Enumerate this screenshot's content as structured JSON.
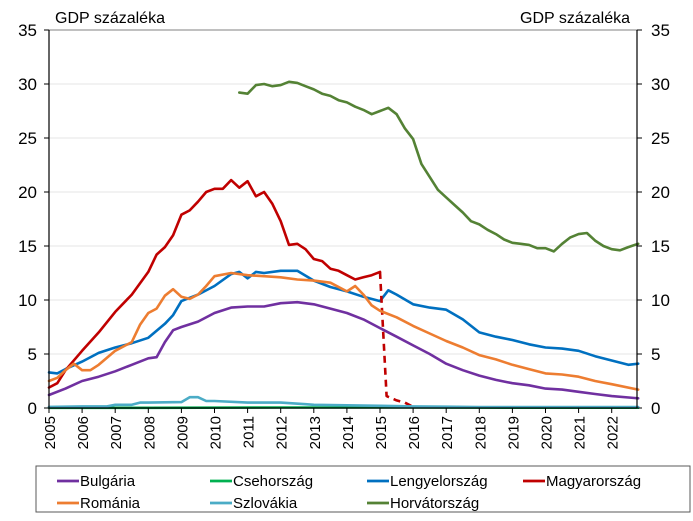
{
  "chart_data": {
    "type": "line",
    "title": "",
    "ylabel_left": "GDP százaléka",
    "ylabel_right": "GDP százaléka",
    "ylim": [
      0,
      35
    ],
    "yticks": [
      0,
      5,
      10,
      15,
      20,
      25,
      30,
      35
    ],
    "xlim": [
      2005,
      2022.8
    ],
    "xticks": [
      "2005",
      "2006",
      "2007",
      "2008",
      "2009",
      "2010",
      "2011",
      "2012",
      "2013",
      "2014",
      "2015",
      "2016",
      "2017",
      "2018",
      "2019",
      "2020",
      "2021",
      "2022"
    ],
    "grid": "horizontal",
    "legend_position": "bottom",
    "series": [
      {
        "name": "Bulgária",
        "color": "#7030A0",
        "x": [
          2005,
          2005.5,
          2006,
          2006.5,
          2007,
          2007.5,
          2008,
          2008.25,
          2008.5,
          2008.75,
          2009,
          2009.5,
          2010,
          2010.5,
          2011,
          2011.5,
          2012,
          2012.5,
          2013,
          2013.5,
          2014,
          2014.5,
          2015,
          2015.5,
          2016,
          2016.5,
          2017,
          2017.5,
          2018,
          2018.5,
          2019,
          2019.5,
          2020,
          2020.5,
          2021,
          2021.5,
          2022,
          2022.8
        ],
        "y": [
          1.2,
          1.8,
          2.5,
          2.9,
          3.4,
          4,
          4.6,
          4.7,
          6.1,
          7.2,
          7.5,
          8,
          8.8,
          9.3,
          9.4,
          9.4,
          9.7,
          9.8,
          9.6,
          9.2,
          8.8,
          8.2,
          7.4,
          6.6,
          5.8,
          5,
          4.1,
          3.5,
          3,
          2.6,
          2.3,
          2.1,
          1.8,
          1.7,
          1.5,
          1.3,
          1.1,
          0.9
        ]
      },
      {
        "name": "Csehország",
        "color": "#00B050",
        "x": [
          2005,
          2008,
          2012,
          2016,
          2020,
          2022.8
        ],
        "y": [
          0.02,
          0.02,
          0.05,
          0.05,
          0.03,
          0.03
        ]
      },
      {
        "name": "Lengyelország",
        "color": "#0070C0",
        "x": [
          2005,
          2005.25,
          2005.5,
          2006,
          2006.5,
          2007,
          2007.5,
          2008,
          2008.5,
          2008.75,
          2009,
          2009.5,
          2010,
          2010.5,
          2010.75,
          2011,
          2011.25,
          2011.5,
          2012,
          2012.5,
          2013,
          2013.5,
          2014,
          2014.5,
          2015,
          2015.25,
          2015.5,
          2016,
          2016.5,
          2017,
          2017.5,
          2018,
          2018.5,
          2019,
          2019.5,
          2020,
          2020.5,
          2021,
          2021.5,
          2022,
          2022.5,
          2022.8
        ],
        "y": [
          3.3,
          3.2,
          3.6,
          4.3,
          5.1,
          5.6,
          6,
          6.5,
          7.8,
          8.6,
          9.9,
          10.5,
          11.3,
          12.4,
          12.6,
          12,
          12.6,
          12.5,
          12.7,
          12.7,
          11.8,
          11.2,
          10.8,
          10.3,
          9.9,
          10.9,
          10.5,
          9.6,
          9.3,
          9.1,
          8.2,
          7,
          6.6,
          6.3,
          5.9,
          5.6,
          5.5,
          5.3,
          4.8,
          4.4,
          4.0,
          4.1
        ]
      },
      {
        "name": "Magyarország",
        "color": "#C00000",
        "x": [
          2005,
          2005.25,
          2005.5,
          2006,
          2006.5,
          2007,
          2007.5,
          2008,
          2008.25,
          2008.5,
          2008.75,
          2009,
          2009.25,
          2009.5,
          2009.75,
          2010,
          2010.25,
          2010.5,
          2010.75,
          2011,
          2011.25,
          2011.5,
          2011.75,
          2012,
          2012.25,
          2012.5,
          2012.75,
          2013,
          2013.25,
          2013.5,
          2013.75,
          2014,
          2014.25,
          2014.5,
          2014.75,
          2015
        ],
        "y": [
          1.9,
          2.3,
          3.5,
          5.3,
          7,
          8.9,
          10.5,
          12.6,
          14.2,
          14.9,
          16.0,
          17.9,
          18.3,
          19.1,
          20.0,
          20.3,
          20.3,
          21.1,
          20.4,
          21.0,
          19.6,
          20.0,
          18.9,
          17.3,
          15.1,
          15.2,
          14.7,
          13.8,
          13.6,
          12.9,
          12.7,
          12.3,
          11.9,
          12.1,
          12.3,
          12.6
        ]
      },
      {
        "name": "Magyarország (szaggatott)",
        "color": "#C00000",
        "dashed": true,
        "x": [
          2015,
          2015.2,
          2015.5,
          2015.75,
          2016
        ],
        "y": [
          12.6,
          1.1,
          0.7,
          0.5,
          0.1
        ]
      },
      {
        "name": "Románia",
        "color": "#ED7D31",
        "x": [
          2005,
          2005.25,
          2005.5,
          2005.75,
          2006,
          2006.25,
          2006.5,
          2007,
          2007.5,
          2007.75,
          2008,
          2008.25,
          2008.5,
          2008.75,
          2009,
          2009.25,
          2009.5,
          2009.75,
          2010,
          2010.5,
          2011,
          2011.5,
          2012,
          2012.5,
          2013,
          2013.5,
          2014,
          2014.25,
          2014.5,
          2014.75,
          2015,
          2015.5,
          2016,
          2016.5,
          2017,
          2017.5,
          2018,
          2018.5,
          2019,
          2019.5,
          2020,
          2020.5,
          2021,
          2021.5,
          2022,
          2022.8
        ],
        "y": [
          2.5,
          2.8,
          3.5,
          4.1,
          3.5,
          3.5,
          4.0,
          5.3,
          6.1,
          7.7,
          8.8,
          9.2,
          10.4,
          11.0,
          10.3,
          10.1,
          10.5,
          11.3,
          12.2,
          12.5,
          12.3,
          12.2,
          12.1,
          11.9,
          11.8,
          11.6,
          10.8,
          11.3,
          10.5,
          9.5,
          9.0,
          8.4,
          7.6,
          6.9,
          6.2,
          5.6,
          4.9,
          4.5,
          4.0,
          3.6,
          3.2,
          3.1,
          2.9,
          2.5,
          2.2,
          1.7
        ]
      },
      {
        "name": "Szlovákia",
        "color": "#4BACC6",
        "x": [
          2005,
          2006,
          2006.75,
          2007,
          2007.5,
          2007.75,
          2008,
          2009,
          2009.25,
          2009.5,
          2009.75,
          2010,
          2011,
          2012,
          2012.75,
          2013,
          2014,
          2015,
          2016,
          2017,
          2018,
          2020,
          2022.8
        ],
        "y": [
          0.1,
          0.15,
          0.15,
          0.3,
          0.3,
          0.5,
          0.5,
          0.55,
          1.0,
          1.0,
          0.65,
          0.65,
          0.5,
          0.5,
          0.35,
          0.3,
          0.25,
          0.2,
          0.15,
          0.12,
          0.08,
          0.08,
          0.08
        ]
      },
      {
        "name": "Horvátország",
        "color": "#548235",
        "x": [
          2010.75,
          2011,
          2011.25,
          2011.5,
          2011.75,
          2012,
          2012.25,
          2012.5,
          2012.75,
          2013,
          2013.25,
          2013.5,
          2013.75,
          2014,
          2014.25,
          2014.5,
          2014.75,
          2015,
          2015.25,
          2015.5,
          2015.75,
          2016,
          2016.25,
          2016.5,
          2016.75,
          2017,
          2017.25,
          2017.5,
          2017.75,
          2018,
          2018.25,
          2018.5,
          2018.75,
          2019,
          2019.25,
          2019.5,
          2019.75,
          2020,
          2020.25,
          2020.5,
          2020.75,
          2021,
          2021.25,
          2021.5,
          2021.75,
          2022,
          2022.25,
          2022.5,
          2022.8
        ],
        "y": [
          29.2,
          29.1,
          29.9,
          30.0,
          29.8,
          29.9,
          30.2,
          30.1,
          29.8,
          29.5,
          29.1,
          28.9,
          28.5,
          28.3,
          27.9,
          27.6,
          27.2,
          27.5,
          27.8,
          27.2,
          25.9,
          24.9,
          22.6,
          21.4,
          20.2,
          19.5,
          18.8,
          18.1,
          17.3,
          17.0,
          16.5,
          16.1,
          15.6,
          15.3,
          15.2,
          15.1,
          14.8,
          14.8,
          14.5,
          15.2,
          15.8,
          16.1,
          16.2,
          15.5,
          15.0,
          14.7,
          14.6,
          14.9,
          15.2
        ]
      }
    ],
    "legend": [
      {
        "label": "Bulgária",
        "color": "#7030A0"
      },
      {
        "label": "Csehország",
        "color": "#00B050"
      },
      {
        "label": "Lengyelország",
        "color": "#0070C0"
      },
      {
        "label": "Magyarország",
        "color": "#C00000"
      },
      {
        "label": "Románia",
        "color": "#ED7D31"
      },
      {
        "label": "Szlovákia",
        "color": "#4BACC6"
      },
      {
        "label": "Horvátország",
        "color": "#548235"
      }
    ]
  }
}
